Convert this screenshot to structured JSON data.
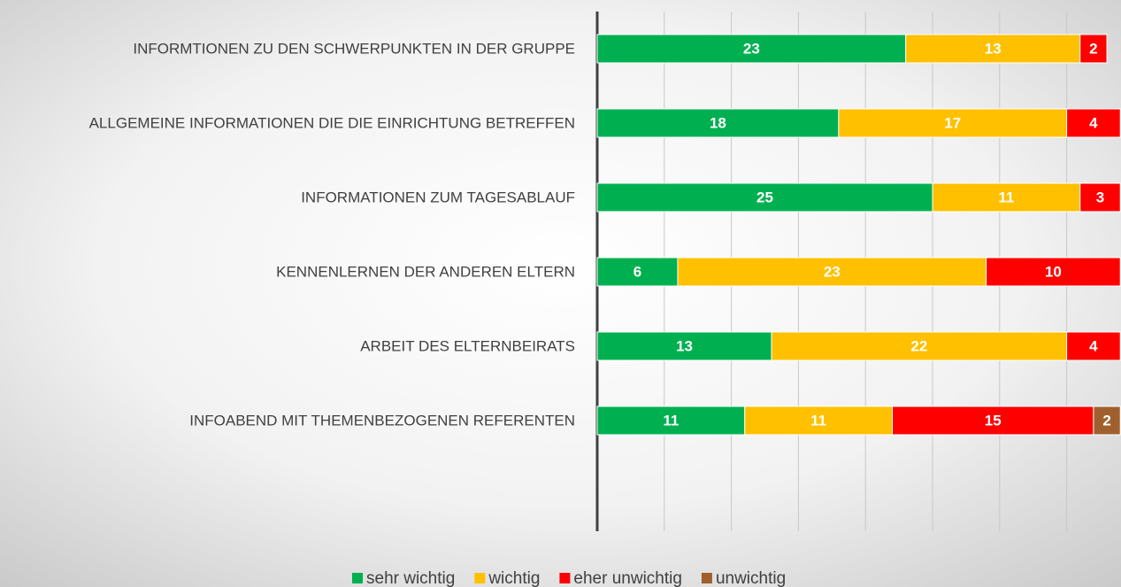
{
  "chart_data": {
    "type": "stacked-bar-horizontal",
    "categories": [
      "INFORMTIONEN ZU DEN SCHWERPUNKTEN IN DER GRUPPE",
      "ALLGEMEINE INFORMATIONEN DIE DIE EINRICHTUNG BETREFFEN",
      "INFORMATIONEN ZUM TAGESABLAUF",
      "KENNENLERNEN DER ANDEREN ELTERN",
      "ARBEIT DES ELTERNBEIRATS",
      "INFOABEND MIT THEMENBEZOGENEN REFERENTEN"
    ],
    "series": [
      {
        "name": "sehr wichtig",
        "color": "#00b050",
        "values": [
          23,
          18,
          25,
          6,
          13,
          11
        ]
      },
      {
        "name": "wichtig",
        "color": "#ffc000",
        "values": [
          13,
          17,
          11,
          23,
          22,
          11
        ]
      },
      {
        "name": "eher unwichtig",
        "color": "#ff0000",
        "values": [
          2,
          4,
          3,
          10,
          4,
          15
        ]
      },
      {
        "name": "unwichtig",
        "color": "#a0602d",
        "values": [
          null,
          null,
          null,
          null,
          null,
          2
        ]
      }
    ],
    "xlim": [
      0,
      39
    ],
    "xticks": [
      0,
      5,
      10,
      15,
      20,
      25,
      30,
      35
    ],
    "grid": true,
    "legend": "bottom"
  }
}
